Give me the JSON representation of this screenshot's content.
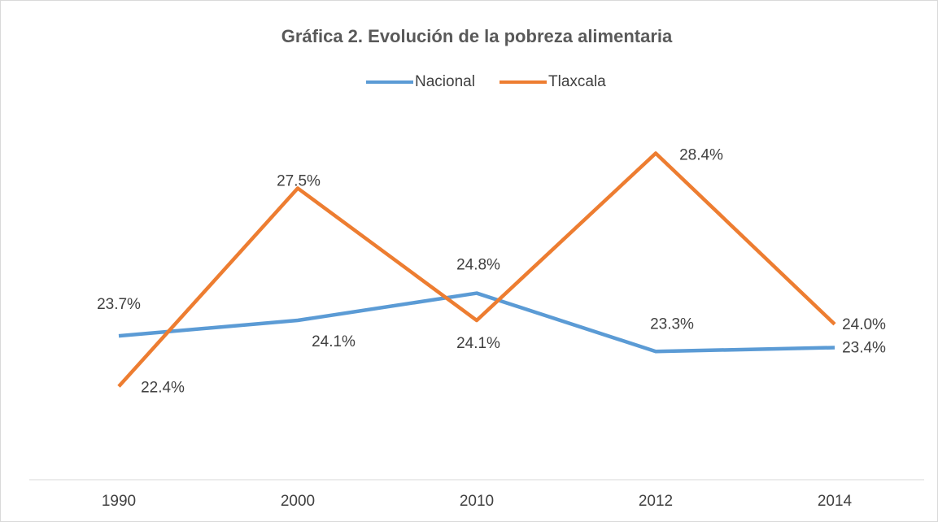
{
  "chart_data": {
    "type": "line",
    "title": "Gráfica 2. Evolución de la pobreza alimentaria",
    "categories": [
      "1990",
      "2000",
      "2010",
      "2012",
      "2014"
    ],
    "series": [
      {
        "name": "Nacional",
        "color": "#5b9bd5",
        "values": [
          23.7,
          24.1,
          24.8,
          23.3,
          23.4
        ],
        "value_labels": [
          "23.7%",
          "24.1%",
          "24.8%",
          "23.3%",
          "23.4%"
        ]
      },
      {
        "name": "Tlaxcala",
        "color": "#ed7d31",
        "values": [
          22.4,
          27.5,
          24.1,
          28.4,
          24.0
        ],
        "value_labels": [
          "22.4%",
          "27.5%",
          "24.1%",
          "28.4%",
          "24.0%"
        ]
      }
    ],
    "ylim": [
      20,
      30
    ],
    "legend": "top"
  }
}
